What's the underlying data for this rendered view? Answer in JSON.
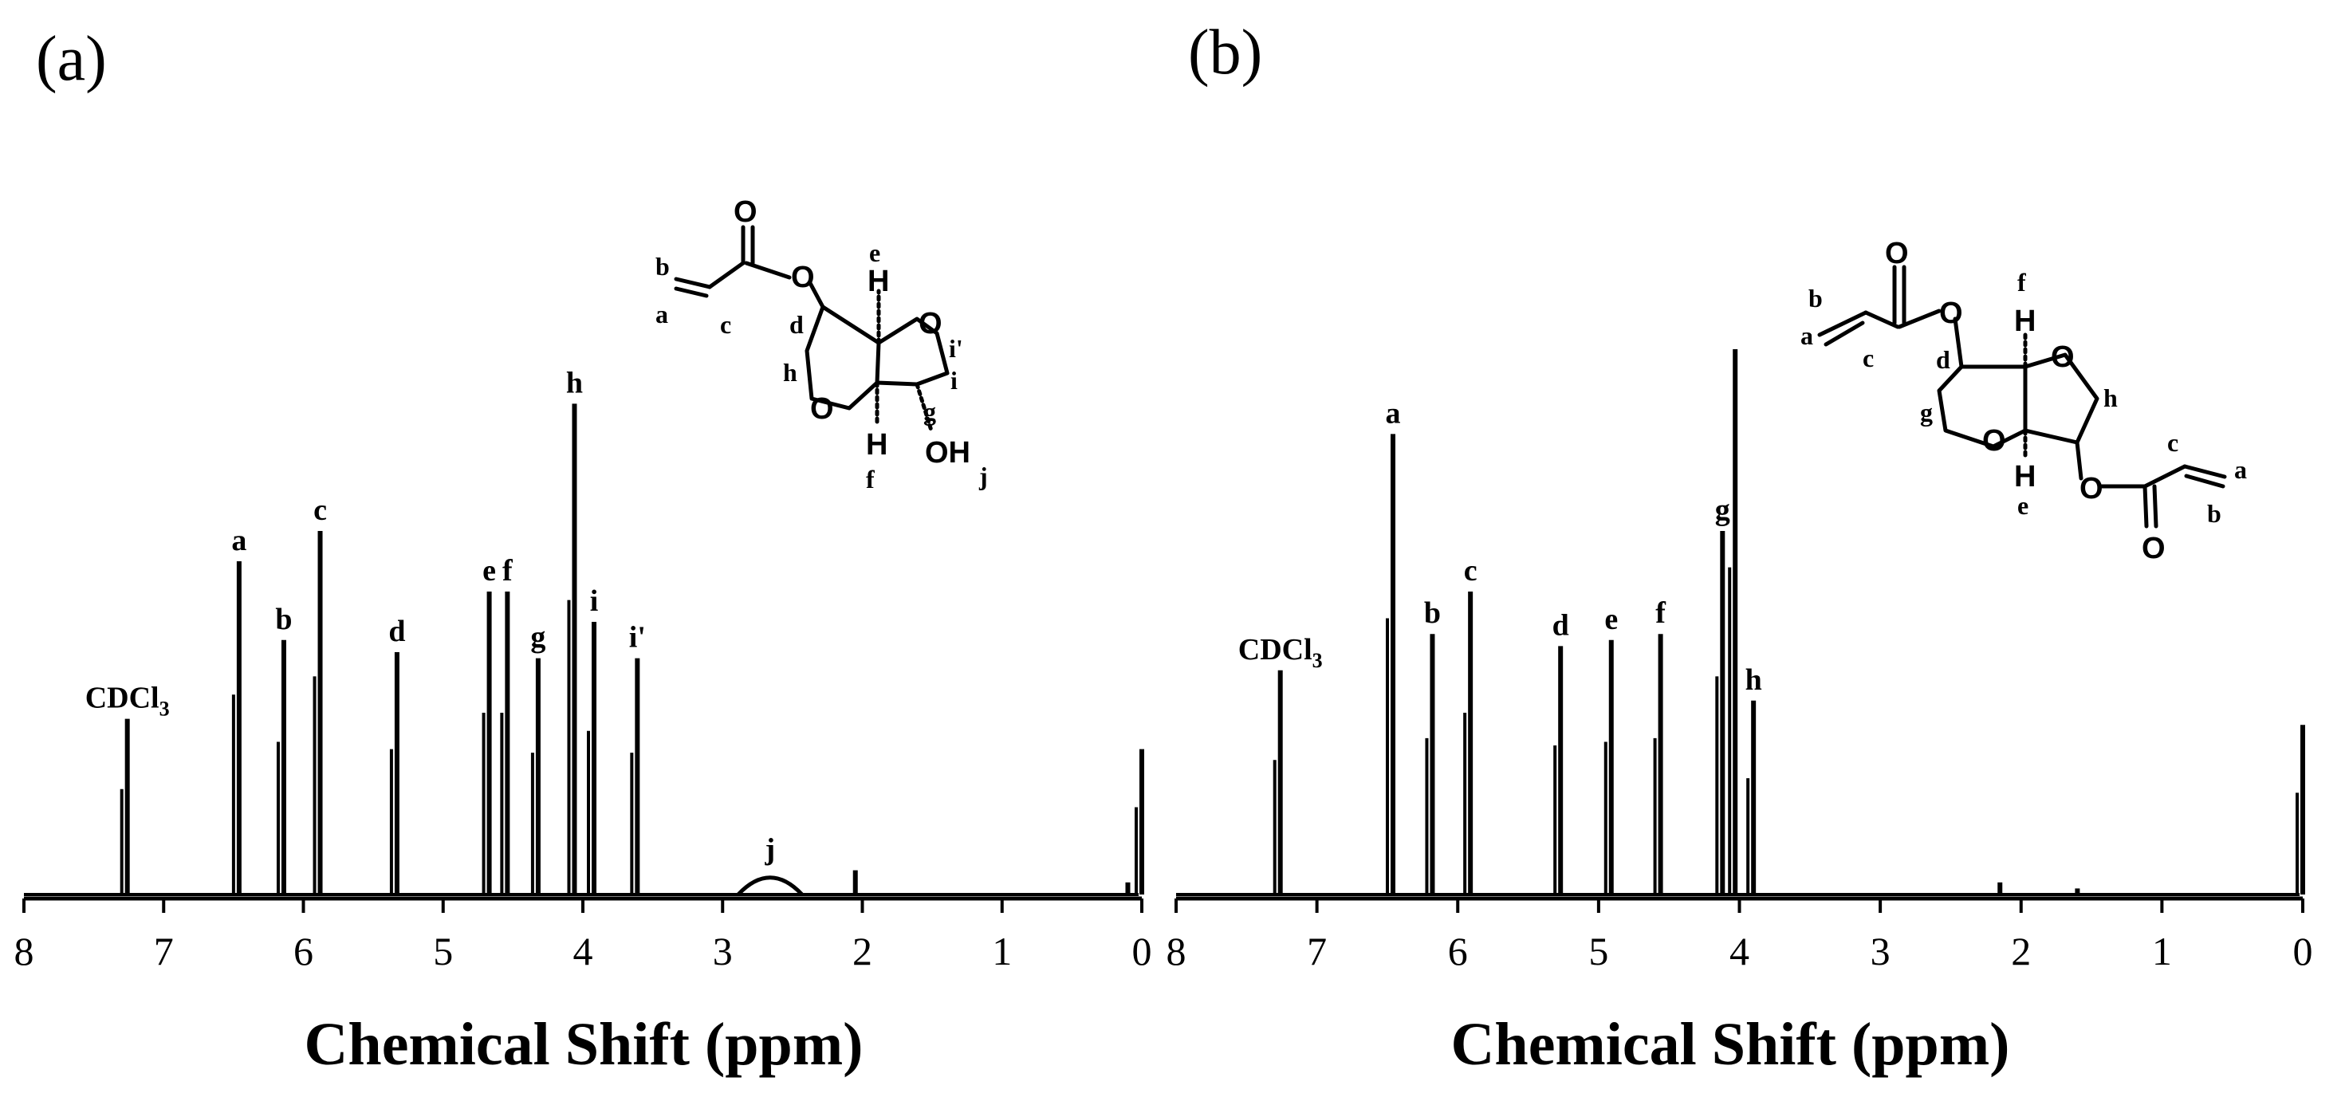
{
  "chart_data": [
    {
      "type": "line",
      "panel_label": "(a)",
      "xlabel": "Chemical Shift (ppm)",
      "ylabel": "",
      "xlim": [
        8,
        0
      ],
      "x_reversed": true,
      "x_ticks": [
        "8",
        "7",
        "6",
        "5",
        "4",
        "3",
        "2",
        "1",
        "0"
      ],
      "peaks": [
        {
          "x": 7.26,
          "height": 0.29,
          "label": "CDCl",
          "sub": "3"
        },
        {
          "x": 6.46,
          "height": 0.55,
          "label": "a"
        },
        {
          "x": 6.14,
          "height": 0.42,
          "label": "b"
        },
        {
          "x": 5.88,
          "height": 0.6,
          "label": "c"
        },
        {
          "x": 5.33,
          "height": 0.4,
          "label": "d"
        },
        {
          "x": 4.67,
          "height": 0.5,
          "label": "e"
        },
        {
          "x": 4.54,
          "height": 0.5,
          "label": "f"
        },
        {
          "x": 4.32,
          "height": 0.39,
          "label": "g"
        },
        {
          "x": 4.06,
          "height": 0.81,
          "label": "h"
        },
        {
          "x": 3.92,
          "height": 0.45,
          "label": "i"
        },
        {
          "x": 3.61,
          "height": 0.39,
          "label": "i'"
        },
        {
          "x": 2.66,
          "height": 0.04,
          "label": "j"
        },
        {
          "x": 2.05,
          "height": 0.04,
          "label": ""
        },
        {
          "x": 0.1,
          "height": 0.02,
          "label": ""
        },
        {
          "x": 0.0,
          "height": 0.24,
          "label": ""
        }
      ],
      "structure_labels": [
        "O",
        "O",
        "O",
        "O",
        "OH",
        "H",
        "H",
        "a",
        "b",
        "c",
        "d",
        "e",
        "f",
        "g",
        "h",
        "i",
        "i'",
        "j"
      ]
    },
    {
      "type": "line",
      "panel_label": "(b)",
      "xlabel": "Chemical Shift (ppm)",
      "ylabel": "",
      "xlim": [
        8,
        0
      ],
      "x_reversed": true,
      "x_ticks": [
        "8",
        "7",
        "6",
        "5",
        "4",
        "3",
        "2",
        "1",
        "0"
      ],
      "peaks": [
        {
          "x": 7.26,
          "height": 0.37,
          "label": "CDCl",
          "sub": "3"
        },
        {
          "x": 6.46,
          "height": 0.76,
          "label": "a"
        },
        {
          "x": 6.18,
          "height": 0.43,
          "label": "b"
        },
        {
          "x": 5.91,
          "height": 0.5,
          "label": "c"
        },
        {
          "x": 5.27,
          "height": 0.41,
          "label": "d"
        },
        {
          "x": 4.91,
          "height": 0.42,
          "label": "e"
        },
        {
          "x": 4.56,
          "height": 0.43,
          "label": "f"
        },
        {
          "x": 4.12,
          "height": 0.6,
          "label": "g"
        },
        {
          "x": 4.03,
          "height": 0.9,
          "label": ""
        },
        {
          "x": 3.9,
          "height": 0.32,
          "label": "h"
        },
        {
          "x": 2.15,
          "height": 0.02,
          "label": ""
        },
        {
          "x": 1.6,
          "height": 0.01,
          "label": ""
        },
        {
          "x": 0.0,
          "height": 0.28,
          "label": ""
        }
      ],
      "structure_labels": [
        "O",
        "O",
        "O",
        "O",
        "O",
        "O",
        "H",
        "H",
        "a",
        "b",
        "c",
        "d",
        "e",
        "f",
        "g",
        "h",
        "c",
        "a",
        "b"
      ]
    }
  ]
}
